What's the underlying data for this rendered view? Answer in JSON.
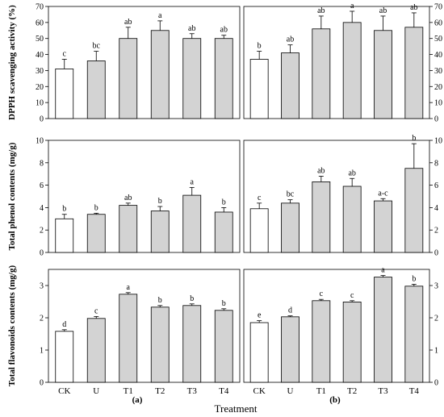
{
  "figure": {
    "xlabel": "Treatment",
    "panel_labels": [
      "(a)",
      "(b)"
    ]
  },
  "colors": {
    "ck_bar": "#ffffff",
    "treatment_bar": "#d3d3d3",
    "stroke": "#000000"
  },
  "chart_data": [
    {
      "type": "bar",
      "row": 0,
      "column": 0,
      "panel": "(a)",
      "ylabel": "DPPH scavenging activity (%)",
      "ylim": [
        0,
        70
      ],
      "yticks": [
        0,
        10,
        20,
        30,
        40,
        50,
        60,
        70
      ],
      "categories": [
        "CK",
        "U",
        "T1",
        "T2",
        "T3",
        "T4"
      ],
      "values": [
        31,
        36,
        50,
        55,
        50,
        50
      ],
      "errors": [
        6,
        6,
        7,
        6,
        3,
        2
      ],
      "letters": [
        "c",
        "bc",
        "ab",
        "a",
        "ab",
        "ab"
      ]
    },
    {
      "type": "bar",
      "row": 0,
      "column": 1,
      "panel": "(b)",
      "ylabel": "",
      "ylim": [
        0,
        70
      ],
      "yticks": [
        0,
        10,
        20,
        30,
        40,
        50,
        60,
        70
      ],
      "categories": [
        "CK",
        "U",
        "T1",
        "T2",
        "T3",
        "T4"
      ],
      "values": [
        37,
        41,
        56,
        60,
        55,
        57
      ],
      "errors": [
        5,
        5,
        8,
        7,
        9,
        9
      ],
      "letters": [
        "b",
        "ab",
        "ab",
        "a",
        "ab",
        "ab"
      ]
    },
    {
      "type": "bar",
      "row": 1,
      "column": 0,
      "panel": "(a)",
      "ylabel": "Total phenol contents (mg/g)",
      "ylim": [
        0,
        10
      ],
      "yticks": [
        0,
        2,
        4,
        6,
        8,
        10
      ],
      "categories": [
        "CK",
        "U",
        "T1",
        "T2",
        "T3",
        "T4"
      ],
      "values": [
        3.0,
        3.4,
        4.2,
        3.7,
        5.1,
        3.6
      ],
      "errors": [
        0.4,
        0.1,
        0.2,
        0.4,
        0.7,
        0.4
      ],
      "letters": [
        "b",
        "b",
        "ab",
        "b",
        "a",
        "b"
      ]
    },
    {
      "type": "bar",
      "row": 1,
      "column": 1,
      "panel": "(b)",
      "ylabel": "",
      "ylim": [
        0,
        10
      ],
      "yticks": [
        0,
        2,
        4,
        6,
        8,
        10
      ],
      "categories": [
        "CK",
        "U",
        "T1",
        "T2",
        "T3",
        "T4"
      ],
      "values": [
        3.9,
        4.4,
        6.3,
        5.9,
        4.6,
        7.5
      ],
      "errors": [
        0.5,
        0.3,
        0.5,
        0.7,
        0.2,
        2.2
      ],
      "letters": [
        "c",
        "bc",
        "ab",
        "ab",
        "a-c",
        "b"
      ]
    },
    {
      "type": "bar",
      "row": 2,
      "column": 0,
      "panel": "(a)",
      "ylabel": "Total flavonoids contents (mg/g)",
      "ylim": [
        0,
        3.5
      ],
      "yticks": [
        0,
        1,
        2,
        3
      ],
      "categories": [
        "CK",
        "U",
        "T1",
        "T2",
        "T3",
        "T4"
      ],
      "values": [
        1.58,
        1.98,
        2.73,
        2.33,
        2.38,
        2.23
      ],
      "errors": [
        0.05,
        0.06,
        0.05,
        0.05,
        0.05,
        0.05
      ],
      "letters": [
        "d",
        "c",
        "a",
        "b",
        "b",
        "b"
      ]
    },
    {
      "type": "bar",
      "row": 2,
      "column": 1,
      "panel": "(b)",
      "ylabel": "",
      "ylim": [
        0,
        3.5
      ],
      "yticks": [
        0,
        1,
        2,
        3
      ],
      "categories": [
        "CK",
        "U",
        "T1",
        "T2",
        "T3",
        "T4"
      ],
      "values": [
        1.85,
        2.03,
        2.53,
        2.49,
        3.26,
        2.98
      ],
      "errors": [
        0.06,
        0.03,
        0.04,
        0.04,
        0.05,
        0.06
      ],
      "letters": [
        "e",
        "d",
        "c",
        "c",
        "a",
        "b"
      ]
    }
  ]
}
